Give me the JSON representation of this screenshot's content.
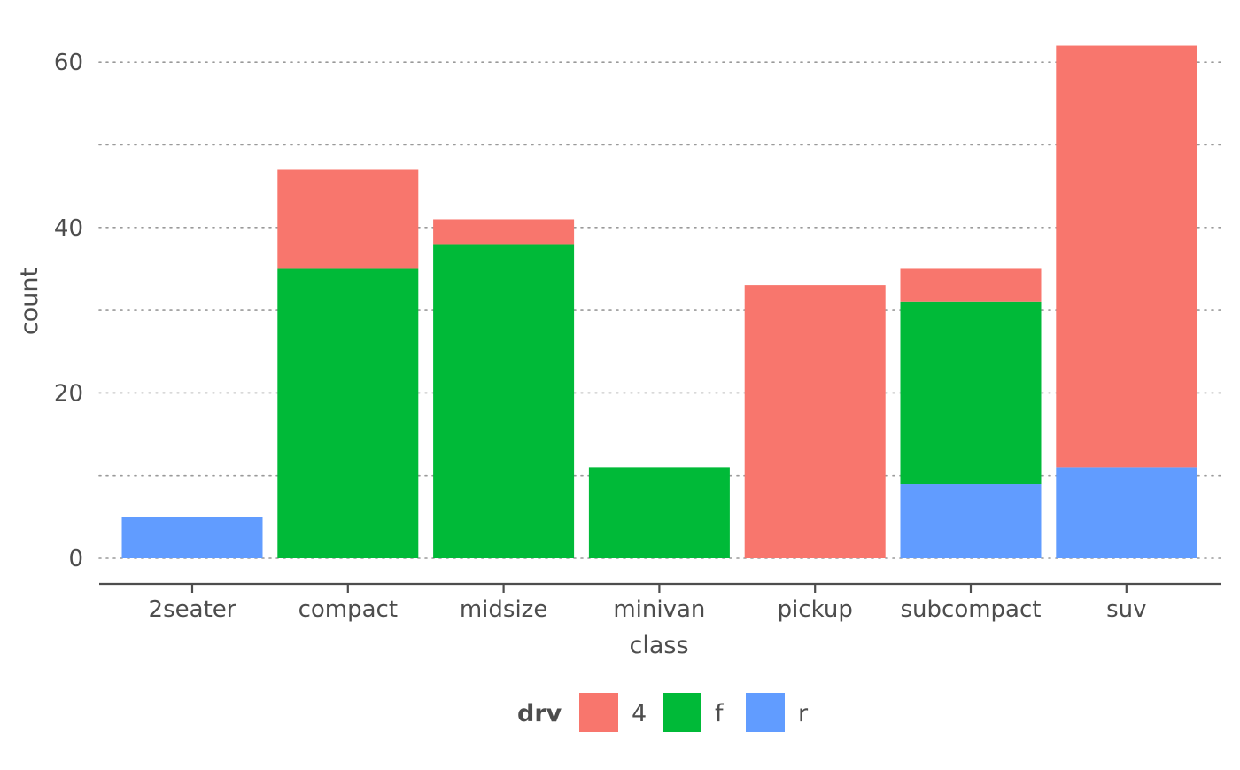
{
  "chart_data": {
    "type": "bar",
    "stacked": true,
    "categories": [
      "2seater",
      "compact",
      "midsize",
      "minivan",
      "pickup",
      "subcompact",
      "suv"
    ],
    "series": [
      {
        "name": "4",
        "color": "#F8766D",
        "values": [
          0,
          12,
          3,
          0,
          33,
          4,
          51
        ]
      },
      {
        "name": "f",
        "color": "#00BA38",
        "values": [
          0,
          35,
          38,
          11,
          0,
          22,
          0
        ]
      },
      {
        "name": "r",
        "color": "#619CFF",
        "values": [
          5,
          0,
          0,
          0,
          0,
          9,
          11
        ]
      }
    ],
    "stack_order_bottom_to_top": [
      "r",
      "f",
      "4"
    ],
    "xlabel": "class",
    "ylabel": "count",
    "ylim": [
      0,
      62
    ],
    "y_ticks": [
      0,
      20,
      40,
      60
    ],
    "y_minor_grid": [
      10,
      30,
      50
    ],
    "grid": "horizontal-dotted",
    "legend": {
      "title": "drv",
      "placement": "bottom"
    }
  }
}
